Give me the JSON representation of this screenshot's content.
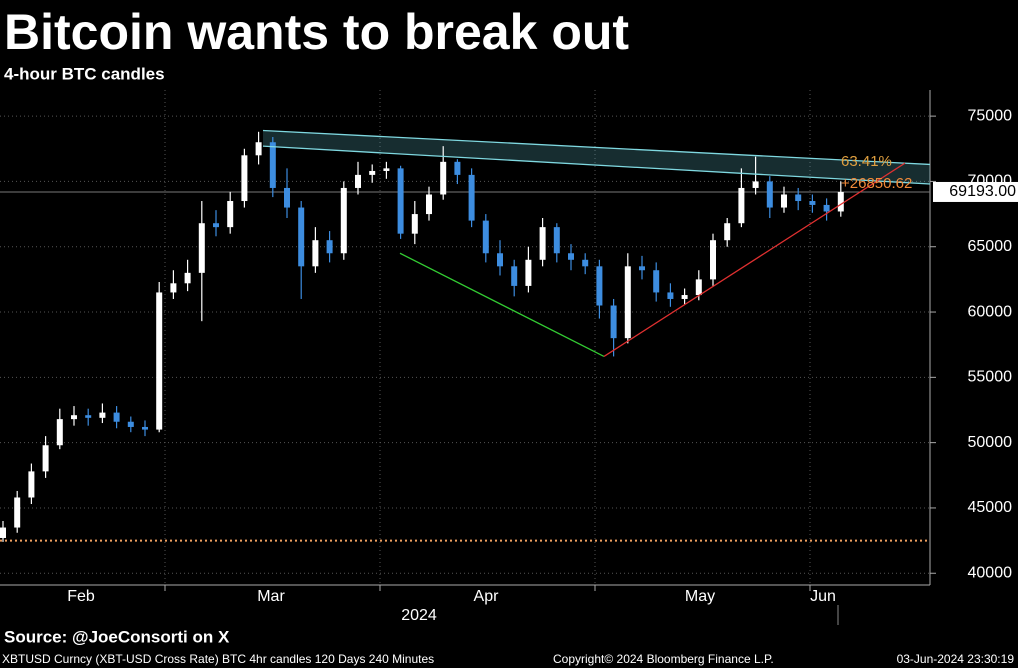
{
  "chart_data": {
    "type": "candlestick",
    "title": "Bitcoin wants to break out",
    "subtitle": "4-hour BTC candles",
    "source": "Source: @JoeConsorti on X",
    "footer": [
      "XBTUSD Curncy (XBT-USD Cross Rate) BTC 4hr candles 120 Days 240 Minutes",
      "Copyright© 2024 Bloomberg Finance L.P.",
      "03-Jun-2024 23:30:19"
    ],
    "months": [
      "Feb",
      "Mar",
      "Apr",
      "May",
      "Jun"
    ],
    "year": "2024",
    "categories": [
      null,
      null,
      null,
      null,
      null,
      null,
      null,
      null,
      null,
      null,
      null,
      null,
      null,
      null,
      null,
      null,
      null,
      null,
      null,
      null,
      null,
      null,
      null,
      null,
      null,
      null,
      null,
      null,
      null,
      null,
      null,
      null,
      null,
      null,
      null,
      null,
      null,
      null,
      null,
      null,
      null,
      null,
      null,
      null,
      null,
      null,
      null,
      null,
      null,
      null,
      null,
      null,
      null,
      null,
      null,
      null,
      null,
      null,
      null,
      null
    ],
    "open": [
      42700,
      43500,
      45800,
      47800,
      49800,
      51800,
      52100,
      51900,
      52300,
      51600,
      51200,
      51000,
      61500,
      62200,
      63000,
      66800,
      66500,
      68500,
      72000,
      73000,
      69500,
      68000,
      63500,
      65500,
      64500,
      69500,
      70500,
      70800,
      71000,
      66000,
      67500,
      69000,
      71500,
      70500,
      67000,
      64500,
      63500,
      62000,
      64000,
      66500,
      64500,
      64000,
      63500,
      60500,
      58000,
      63500,
      63200,
      61500,
      61000,
      61300,
      62500,
      65500,
      66800,
      69500,
      70000,
      68000,
      69000,
      68500,
      68200,
      67700
    ],
    "high": [
      44000,
      46300,
      48400,
      50500,
      52600,
      52800,
      52600,
      53000,
      52800,
      52000,
      51700,
      62300,
      63200,
      64000,
      68500,
      67800,
      69200,
      72500,
      73800,
      73400,
      71000,
      68500,
      66500,
      66200,
      70000,
      71500,
      71300,
      71500,
      71200,
      68500,
      69600,
      72700,
      71700,
      71000,
      67500,
      65500,
      64000,
      65000,
      67200,
      66800,
      65200,
      64500,
      64000,
      61000,
      64500,
      64300,
      63800,
      62200,
      61800,
      63200,
      66000,
      67200,
      71000,
      71900,
      70400,
      69600,
      69500,
      69000,
      68700,
      70000
    ],
    "low": [
      42400,
      43100,
      45300,
      47300,
      49500,
      51300,
      51300,
      51500,
      51100,
      50800,
      50500,
      50800,
      61000,
      61600,
      59300,
      65800,
      66000,
      68000,
      71300,
      68800,
      67200,
      61000,
      63000,
      63800,
      64000,
      69000,
      69900,
      70200,
      65600,
      65200,
      67000,
      68600,
      69800,
      66500,
      63800,
      62800,
      61200,
      61500,
      63500,
      63800,
      63200,
      62900,
      59500,
      56600,
      57600,
      62500,
      60800,
      60400,
      60600,
      60900,
      62000,
      65000,
      66500,
      69000,
      67200,
      67600,
      67800,
      67600,
      67000,
      67300
    ],
    "close": [
      43500,
      45800,
      47800,
      49800,
      51800,
      52100,
      51900,
      52300,
      51600,
      51200,
      51000,
      61500,
      62200,
      63000,
      66800,
      66500,
      68500,
      72000,
      73000,
      69500,
      68000,
      63500,
      65500,
      64500,
      69500,
      70500,
      70800,
      71000,
      66000,
      67500,
      69000,
      71500,
      70500,
      67000,
      64500,
      63500,
      62000,
      64000,
      66500,
      64500,
      64000,
      63500,
      60500,
      58000,
      63500,
      63200,
      61500,
      61000,
      61300,
      62500,
      65500,
      66800,
      69500,
      70000,
      68000,
      69000,
      68500,
      68200,
      67700,
      69193
    ],
    "up_color": "#ffffff",
    "down_color": "#3d8de0",
    "ylim": [
      39100,
      77000
    ],
    "yticks": [
      40000,
      45000,
      50000,
      55000,
      60000,
      65000,
      70000,
      75000
    ],
    "grid": true,
    "last_price": {
      "value": 69193,
      "label": "69193.00"
    },
    "reference_line": {
      "value": 42500,
      "color": "#f0a060"
    },
    "trendlines": [
      {
        "color": "#7fd8e0",
        "values": [
          73900,
          71300
        ]
      },
      {
        "color": "#7fd8e0",
        "values": [
          72700,
          69800
        ]
      },
      {
        "color": "#33cc33",
        "values": [
          64500,
          56600
        ]
      },
      {
        "color": "#e03030",
        "values": [
          56600,
          71400
        ]
      }
    ],
    "annotations": [
      {
        "text": "63.41%",
        "color": "#e0a040"
      },
      {
        "text": "+26850.62",
        "color": "#f08a3a"
      }
    ]
  }
}
